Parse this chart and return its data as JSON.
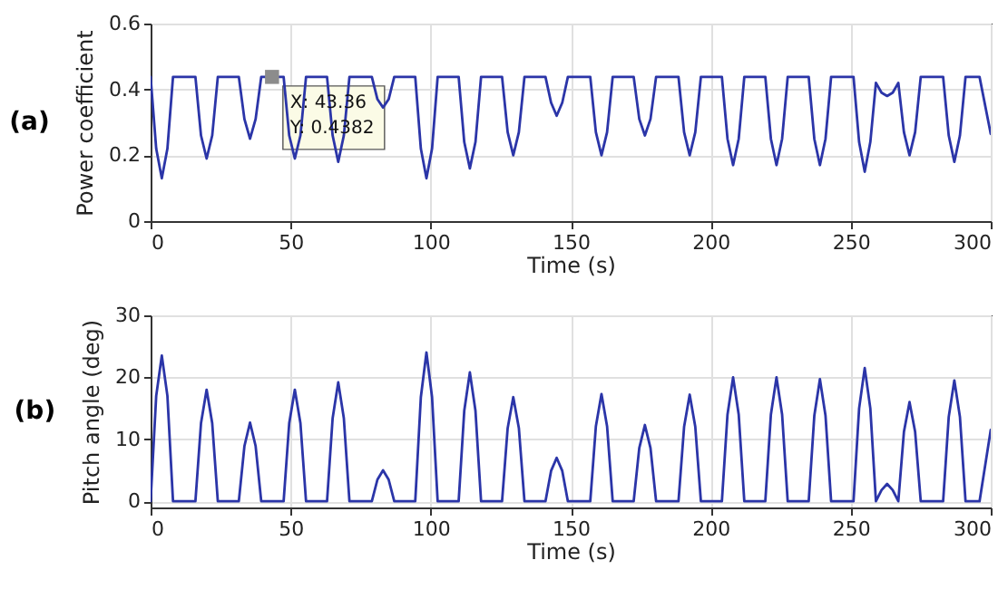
{
  "chart_data": [
    {
      "type": "line",
      "title": "(a)",
      "xlabel": "Time (s)",
      "ylabel": "Power coefficient",
      "xlim": [
        0,
        300
      ],
      "xticks": [
        0,
        50,
        100,
        150,
        200,
        250,
        300
      ],
      "ylim": [
        0,
        0.6
      ],
      "yticks": [
        0,
        0.2,
        0.4,
        0.6
      ],
      "grid": true,
      "line_style": "solid",
      "annotations": [
        "X: 43.36\nY: 0.4382"
      ],
      "x": [
        0,
        2,
        4,
        6,
        8,
        16,
        18,
        20,
        22,
        24,
        31.5,
        33.5,
        35.5,
        37.5,
        39.5,
        47.5,
        49.5,
        51.5,
        53.5,
        55.5,
        63,
        65,
        67,
        69,
        71,
        79,
        81,
        83,
        85,
        87,
        94.5,
        96.5,
        98.5,
        100.5,
        102.5,
        110,
        112,
        114,
        116,
        118,
        125.5,
        127.5,
        129.5,
        131.5,
        133.5,
        141,
        143,
        145,
        147,
        149,
        157,
        159,
        161,
        163,
        165,
        172.5,
        174.5,
        176.5,
        178.5,
        180.5,
        188.5,
        190.5,
        192.5,
        194.5,
        196.5,
        204,
        206,
        208,
        210,
        212,
        219.5,
        221.5,
        223.5,
        225.5,
        227.5,
        235,
        237,
        239,
        241,
        243,
        251,
        253,
        255,
        257,
        259,
        261,
        263,
        265,
        267,
        269,
        271,
        273,
        275,
        283,
        285,
        287,
        289,
        291,
        296,
        300
      ],
      "series": [
        {
          "color": "#2b35a8",
          "values": [
            0.438,
            0.22,
            0.13,
            0.22,
            0.438,
            0.438,
            0.26,
            0.19,
            0.26,
            0.438,
            0.438,
            0.31,
            0.25,
            0.31,
            0.438,
            0.438,
            0.26,
            0.19,
            0.26,
            0.438,
            0.438,
            0.26,
            0.18,
            0.26,
            0.438,
            0.438,
            0.37,
            0.345,
            0.37,
            0.438,
            0.438,
            0.22,
            0.13,
            0.22,
            0.438,
            0.438,
            0.24,
            0.16,
            0.24,
            0.438,
            0.438,
            0.27,
            0.2,
            0.27,
            0.438,
            0.438,
            0.36,
            0.32,
            0.36,
            0.438,
            0.438,
            0.27,
            0.2,
            0.27,
            0.438,
            0.438,
            0.31,
            0.26,
            0.31,
            0.438,
            0.438,
            0.27,
            0.2,
            0.27,
            0.438,
            0.438,
            0.25,
            0.17,
            0.25,
            0.438,
            0.438,
            0.25,
            0.17,
            0.25,
            0.438,
            0.438,
            0.25,
            0.17,
            0.25,
            0.438,
            0.438,
            0.24,
            0.15,
            0.24,
            0.42,
            0.39,
            0.38,
            0.39,
            0.42,
            0.27,
            0.2,
            0.27,
            0.438,
            0.438,
            0.26,
            0.18,
            0.26,
            0.438,
            0.438,
            0.265
          ]
        },
        {
          "type": "scatter",
          "color": "#8c8c8c",
          "marker": "square",
          "x": [
            43.36
          ],
          "values": [
            0.438
          ]
        }
      ]
    },
    {
      "type": "line",
      "title": "(b)",
      "xlabel": "Time (s)",
      "ylabel": "Pitch angle (deg)",
      "xlim": [
        0,
        300
      ],
      "xticks": [
        0,
        50,
        100,
        150,
        200,
        250,
        300
      ],
      "ylim": [
        -1,
        30
      ],
      "yticks": [
        0,
        10,
        20,
        30
      ],
      "grid": true,
      "line_style": "solid",
      "x": [
        0,
        2,
        4,
        6,
        8,
        16,
        18,
        20,
        22,
        24,
        31.5,
        33.5,
        35.5,
        37.5,
        39.5,
        47.5,
        49.5,
        51.5,
        53.5,
        55.5,
        63,
        65,
        67,
        69,
        71,
        79,
        81,
        83,
        85,
        87,
        94.5,
        96.5,
        98.5,
        100.5,
        102.5,
        110,
        112,
        114,
        116,
        118,
        125.5,
        127.5,
        129.5,
        131.5,
        133.5,
        141,
        143,
        145,
        147,
        149,
        157,
        159,
        161,
        163,
        165,
        172.5,
        174.5,
        176.5,
        178.5,
        180.5,
        188.5,
        190.5,
        192.5,
        194.5,
        196.5,
        204,
        206,
        208,
        210,
        212,
        219.5,
        221.5,
        223.5,
        225.5,
        227.5,
        235,
        237,
        239,
        241,
        243,
        251,
        253,
        255,
        257,
        259,
        261,
        263,
        265,
        267,
        269,
        271,
        273,
        275,
        283,
        285,
        287,
        289,
        291,
        296,
        300
      ],
      "series": [
        {
          "color": "#2b35a8",
          "values": [
            0,
            17,
            23.5,
            17,
            0,
            0,
            12.6,
            18,
            12.6,
            0,
            0,
            8.9,
            12.7,
            8.9,
            0,
            0,
            12.6,
            18,
            12.6,
            0,
            0,
            13.4,
            19.2,
            13.4,
            0,
            0,
            3.5,
            5,
            3.5,
            0,
            0,
            16.8,
            24,
            16.8,
            0,
            0,
            14.6,
            20.8,
            14.6,
            0,
            0,
            11.8,
            16.8,
            11.8,
            0,
            0,
            4.9,
            7,
            4.9,
            0,
            0,
            12.1,
            17.3,
            12.1,
            0,
            0,
            8.6,
            12.3,
            8.6,
            0,
            0,
            12,
            17.2,
            12,
            0,
            0,
            14,
            20,
            14,
            0,
            0,
            14,
            20,
            14,
            0,
            0,
            13.8,
            19.7,
            13.8,
            0,
            0,
            15,
            21.5,
            15,
            0,
            1.8,
            2.8,
            1.8,
            0,
            11.2,
            16,
            11.2,
            0,
            0,
            13.6,
            19.5,
            13.6,
            0,
            0,
            11.5
          ]
        }
      ]
    }
  ]
}
